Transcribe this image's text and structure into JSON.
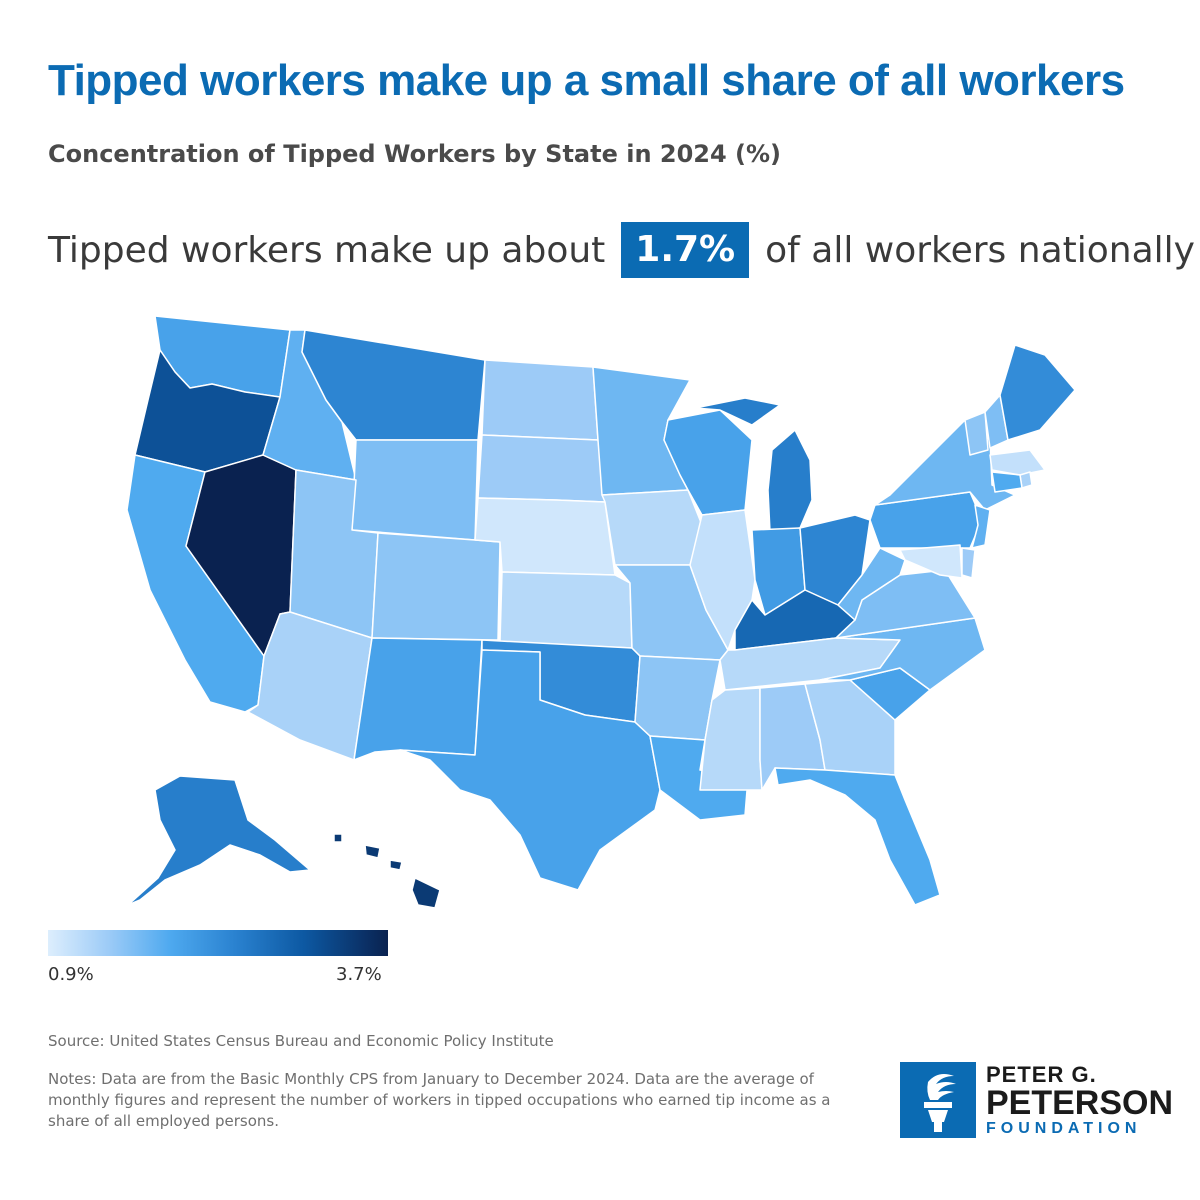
{
  "title": "Tipped workers make up a small share of all workers",
  "subtitle": "Concentration of Tipped Workers by State in 2024 (%)",
  "callout": {
    "prefix": "Tipped workers make up about",
    "value": "1.7%",
    "suffix": "of all workers nationally"
  },
  "legend": {
    "min_label": "0.9%",
    "max_label": "3.7%"
  },
  "colors": {
    "title": "#0b6bb3",
    "badge": "#0b6bb3",
    "scale_low": "#ddeefd",
    "scale_high": "#0a2250"
  },
  "chart_data": {
    "type": "choropleth",
    "scale": {
      "min": 0.9,
      "max": 3.7
    },
    "values": {
      "WA": 2.0,
      "OR": 3.1,
      "CA": 1.9,
      "NV": 3.7,
      "ID": 1.8,
      "MT": 2.4,
      "WY": 1.6,
      "UT": 1.5,
      "AZ": 1.3,
      "CO": 1.5,
      "NM": 2.0,
      "ND": 1.4,
      "SD": 1.4,
      "NE": 1.0,
      "KS": 1.2,
      "OK": 2.3,
      "TX": 2.0,
      "MN": 1.7,
      "IA": 1.2,
      "MO": 1.5,
      "AR": 1.5,
      "LA": 1.9,
      "WI": 2.0,
      "IL": 1.1,
      "MI": 2.5,
      "IN": 2.1,
      "OH": 2.4,
      "KY": 2.8,
      "TN": 1.2,
      "MS": 1.2,
      "AL": 1.4,
      "GA": 1.3,
      "FL": 1.9,
      "SC": 2.0,
      "NC": 1.7,
      "VA": 1.6,
      "WV": 1.7,
      "PA": 2.0,
      "NY": 1.7,
      "VT": 1.5,
      "NH": 1.6,
      "ME": 2.3,
      "MA": 1.1,
      "RI": 1.3,
      "CT": 1.9,
      "NJ": 1.8,
      "DE": 1.4,
      "MD": 1.0,
      "AK": 2.5,
      "HI": 3.4
    }
  },
  "source": "Source: United States Census Bureau and Economic Policy Institute",
  "notes": "Notes: Data are from the Basic Monthly CPS from January to December 2024. Data are the average of monthly figures and represent the number of workers in tipped occupations who earned tip income as a share of all employed persons.",
  "logo": {
    "line1": "PETER G.",
    "line2": "PETERSON",
    "line3": "FOUNDATION"
  }
}
